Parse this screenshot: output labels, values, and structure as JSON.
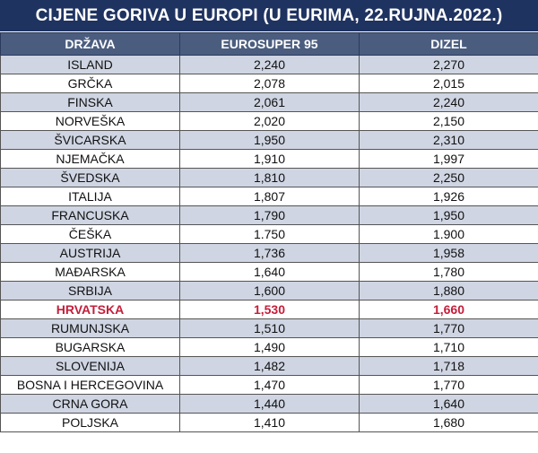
{
  "title": "CIJENE GORIVA U EUROPI (U EURIMA, 22.RUJNA.2022.)",
  "columns": [
    "DRŽAVA",
    "EUROSUPER 95",
    "DIZEL"
  ],
  "highlight_color": "#c41e3a",
  "rows": [
    {
      "country": "ISLAND",
      "eurosuper": "2,240",
      "dizel": "2,270"
    },
    {
      "country": "GRČKA",
      "eurosuper": "2,078",
      "dizel": "2,015"
    },
    {
      "country": "FINSKA",
      "eurosuper": "2,061",
      "dizel": "2,240"
    },
    {
      "country": "NORVEŠKA",
      "eurosuper": "2,020",
      "dizel": "2,150"
    },
    {
      "country": "ŠVICARSKA",
      "eurosuper": "1,950",
      "dizel": "2,310"
    },
    {
      "country": "NJEMAČKA",
      "eurosuper": "1,910",
      "dizel": "1,997"
    },
    {
      "country": "ŠVEDSKA",
      "eurosuper": "1,810",
      "dizel": "2,250"
    },
    {
      "country": "ITALIJA",
      "eurosuper": "1,807",
      "dizel": "1,926"
    },
    {
      "country": "FRANCUSKA",
      "eurosuper": "1,790",
      "dizel": "1,950"
    },
    {
      "country": "ČEŠKA",
      "eurosuper": "1.750",
      "dizel": "1.900"
    },
    {
      "country": "AUSTRIJA",
      "eurosuper": "1,736",
      "dizel": "1,958"
    },
    {
      "country": "MAĐARSKA",
      "eurosuper": "1,640",
      "dizel": "1,780"
    },
    {
      "country": "SRBIJA",
      "eurosuper": "1,600",
      "dizel": "1,880"
    },
    {
      "country": "HRVATSKA",
      "eurosuper": "1,530",
      "dizel": "1,660",
      "highlight": true
    },
    {
      "country": "RUMUNJSKA",
      "eurosuper": "1,510",
      "dizel": "1,770"
    },
    {
      "country": "BUGARSKA",
      "eurosuper": "1,490",
      "dizel": "1,710"
    },
    {
      "country": "SLOVENIJA",
      "eurosuper": "1,482",
      "dizel": "1,718"
    },
    {
      "country": "BOSNA I HERCEGOVINA",
      "eurosuper": "1,470",
      "dizel": "1,770"
    },
    {
      "country": "CRNA GORA",
      "eurosuper": "1,440",
      "dizel": "1,640"
    },
    {
      "country": "POLJSKA",
      "eurosuper": "1,410",
      "dizel": "1,680"
    }
  ]
}
